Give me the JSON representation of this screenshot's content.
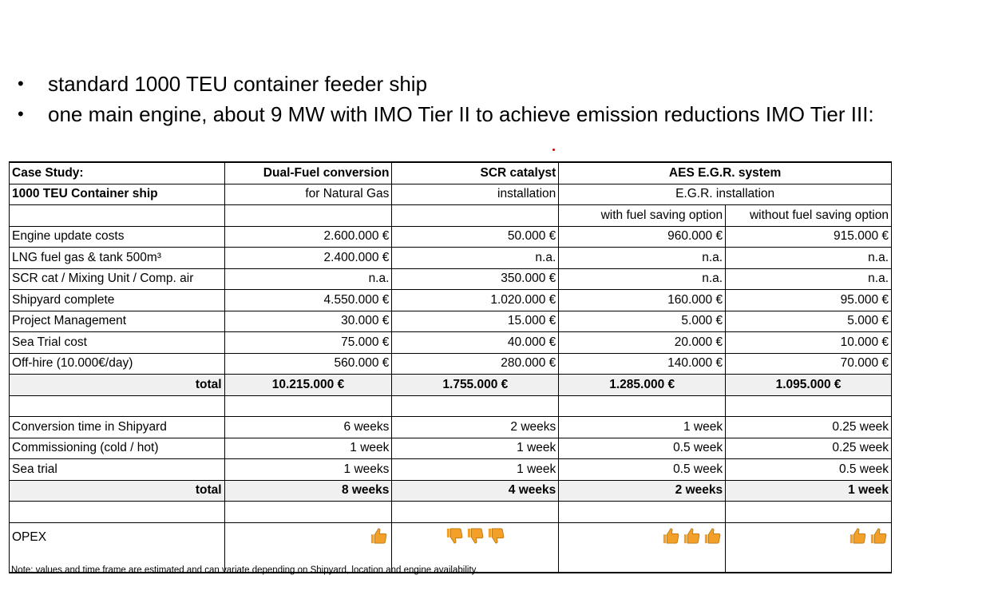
{
  "bullets": [
    "standard 1000 TEU container feeder ship",
    "one main engine, about 9 MW with IMO Tier II to achieve emission reductions IMO Tier III:"
  ],
  "table": {
    "header1": [
      "Case Study:",
      "Dual-Fuel conversion",
      "SCR catalyst",
      "AES E.G.R. system"
    ],
    "header2": [
      "1000 TEU Container ship",
      "for Natural Gas",
      "installation",
      "E.G.R. installation"
    ],
    "header3": [
      "",
      "",
      "",
      "with fuel saving option",
      "without fuel saving option"
    ],
    "cost_rows": [
      [
        "Engine update costs",
        "2.600.000 €",
        "50.000 €",
        "960.000 €",
        "915.000 €"
      ],
      [
        "LNG fuel gas & tank 500m³",
        "2.400.000 €",
        "n.a.",
        "n.a.",
        "n.a."
      ],
      [
        "SCR cat / Mixing Unit / Comp. air",
        "n.a.",
        "350.000 €",
        "n.a.",
        "n.a."
      ],
      [
        "Shipyard complete",
        "4.550.000 €",
        "1.020.000 €",
        "160.000 €",
        "95.000 €"
      ],
      [
        "Project Management",
        "30.000 €",
        "15.000 €",
        "5.000 €",
        "5.000 €"
      ],
      [
        "Sea Trial cost",
        "75.000 €",
        "40.000 €",
        "20.000 €",
        "10.000 €"
      ],
      [
        "Off-hire (10.000€/day)",
        "560.000 €",
        "280.000 €",
        "140.000 €",
        "70.000 €"
      ]
    ],
    "cost_total": [
      "total",
      "10.215.000 €",
      "1.755.000 €",
      "1.285.000 €",
      "1.095.000 €"
    ],
    "time_rows": [
      [
        "Conversion time in Shipyard",
        "6 weeks",
        "2 weeks",
        "1 week",
        "0.25 week"
      ],
      [
        "Commissioning (cold / hot)",
        "1 week",
        "1 week",
        "0.5 week",
        "0.25 week"
      ],
      [
        "Sea trial",
        "1 weeks",
        "1 week",
        "0.5 week",
        "0.5 week"
      ]
    ],
    "time_total": [
      "total",
      "8 weeks",
      "4 weeks",
      "2 weeks",
      "1 week"
    ],
    "opex_label": "OPEX",
    "opex": [
      {
        "icon": "thumbs-up-icon",
        "count": 1
      },
      {
        "icon": "thumbs-down-icon",
        "count": 3
      },
      {
        "icon": "thumbs-up-icon",
        "count": 3
      },
      {
        "icon": "thumbs-up-icon",
        "count": 2
      }
    ],
    "icon_color": "#f2a02a"
  },
  "note": "Note: values and time frame are estimated and can variate depending on Shipyard, location and engine availability."
}
